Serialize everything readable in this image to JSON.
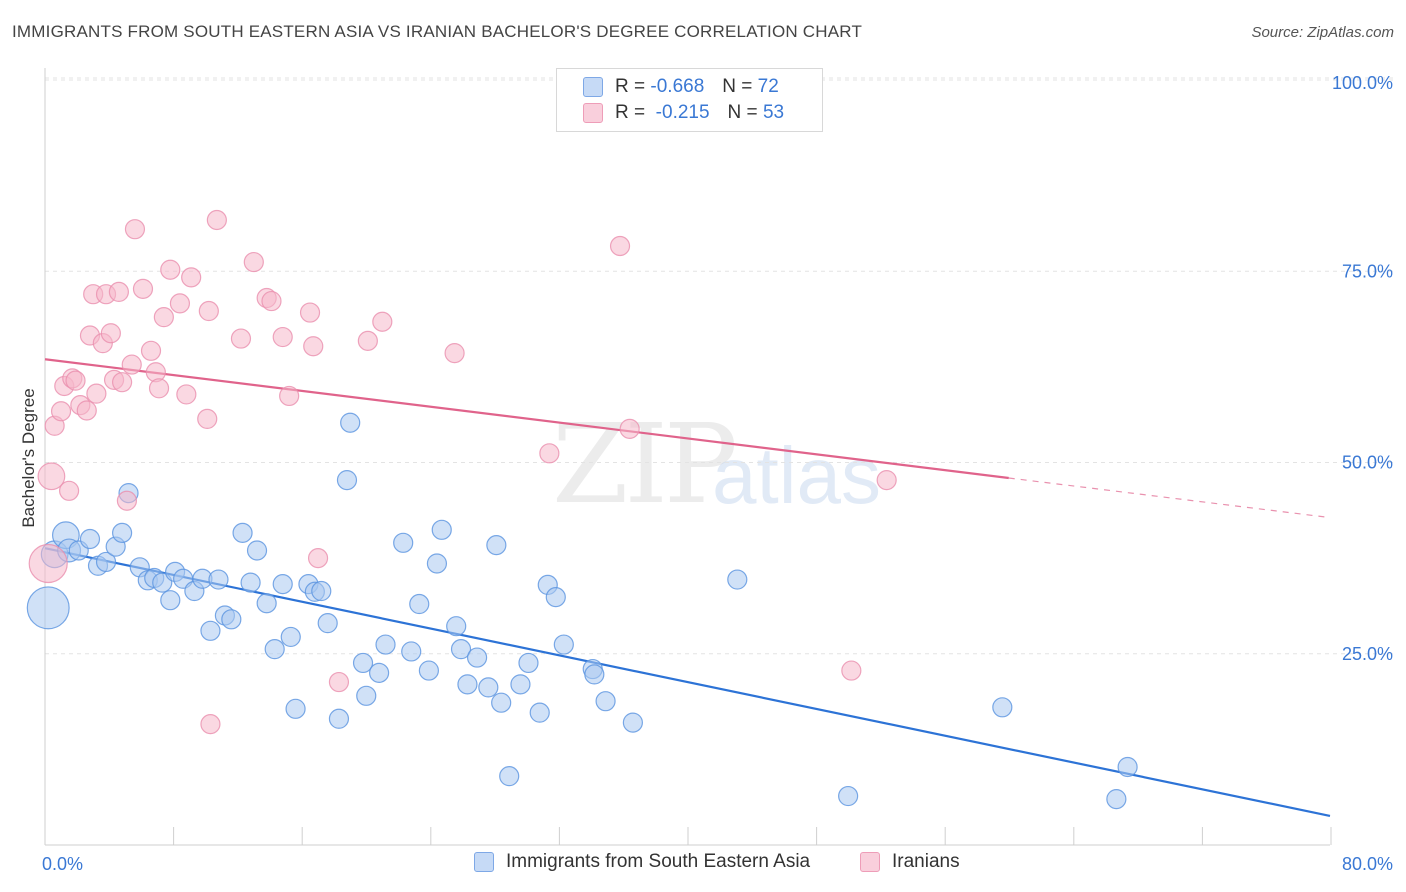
{
  "title": "IMMIGRANTS FROM SOUTH EASTERN ASIA VS IRANIAN BACHELOR'S DEGREE CORRELATION CHART",
  "source": "Source: ZipAtlas.com",
  "watermark": {
    "zip": "ZIP",
    "atlas": "atlas"
  },
  "legend": {
    "rows": [
      {
        "r_label": "R =",
        "r_value": "-0.668",
        "n_label": "N =",
        "n_value": "72",
        "color": "#aac8f0"
      },
      {
        "r_label": "R =",
        "r_value": "-0.215",
        "n_label": "N =",
        "n_value": "53",
        "color": "#f5b8cb"
      }
    ]
  },
  "bottom_legend": [
    {
      "label": "Immigrants from South Eastern Asia",
      "color": "#aac8f0"
    },
    {
      "label": "Iranians",
      "color": "#f5b8cb"
    }
  ],
  "chart_data": {
    "type": "scatter",
    "title": "IMMIGRANTS FROM SOUTH EASTERN ASIA VS IRANIAN BACHELOR'S DEGREE CORRELATION CHART",
    "xlabel": "",
    "ylabel": "Bachelor's Degree",
    "xlim": [
      0,
      80
    ],
    "ylim": [
      0,
      100
    ],
    "x_tick_labels": [
      "0.0%",
      "80.0%"
    ],
    "y_tick_labels": [
      {
        "value": 100,
        "label": "100.0%"
      },
      {
        "value": 75,
        "label": "75.0%"
      },
      {
        "value": 50,
        "label": "50.0%"
      },
      {
        "value": 25,
        "label": "25.0%"
      }
    ],
    "series": [
      {
        "name": "Immigrants from South Eastern Asia",
        "color": "#5a93e0",
        "fill": "#aac8f0",
        "trend": {
          "x": [
            0,
            80
          ],
          "y": [
            38.8,
            3.8
          ],
          "solid_until": 80,
          "color": "#2d73d6"
        },
        "points": [
          [
            0.2,
            31,
            2.2
          ],
          [
            0.6,
            38,
            1.4
          ],
          [
            1.3,
            40.5,
            1.4
          ],
          [
            1.5,
            38.5,
            1.2
          ],
          [
            2.1,
            38.5,
            1.0
          ],
          [
            2.8,
            40,
            1.0
          ],
          [
            3.3,
            36.5,
            1.0
          ],
          [
            3.8,
            37,
            1.0
          ],
          [
            4.4,
            39,
            1.0
          ],
          [
            4.8,
            40.8,
            1.0
          ],
          [
            5.2,
            46,
            1.0
          ],
          [
            5.9,
            36.3,
            1.0
          ],
          [
            6.4,
            34.6,
            1.0
          ],
          [
            6.8,
            34.9,
            1.0
          ],
          [
            7.3,
            34.3,
            1.0
          ],
          [
            7.8,
            32,
            1.0
          ],
          [
            8.1,
            35.7,
            1.0
          ],
          [
            8.6,
            34.8,
            1.0
          ],
          [
            9.3,
            33.2,
            1.0
          ],
          [
            9.8,
            34.8,
            1.0
          ],
          [
            10.3,
            28,
            1.0
          ],
          [
            10.8,
            34.7,
            1.0
          ],
          [
            11.2,
            30,
            1.0
          ],
          [
            11.6,
            29.5,
            1.0
          ],
          [
            12.3,
            40.8,
            1.0
          ],
          [
            12.8,
            34.3,
            1.0
          ],
          [
            13.2,
            38.5,
            1.0
          ],
          [
            13.8,
            31.6,
            1.0
          ],
          [
            14.3,
            25.6,
            1.0
          ],
          [
            14.8,
            34.1,
            1.0
          ],
          [
            15.3,
            27.2,
            1.0
          ],
          [
            15.6,
            17.8,
            1.0
          ],
          [
            16.4,
            34.1,
            1.0
          ],
          [
            16.8,
            33.1,
            1.0
          ],
          [
            17.2,
            33.2,
            1.0
          ],
          [
            17.6,
            29,
            1.0
          ],
          [
            18.3,
            16.5,
            1.0
          ],
          [
            18.8,
            47.7,
            1.0
          ],
          [
            19.0,
            55.2,
            1.0
          ],
          [
            19.8,
            23.8,
            1.0
          ],
          [
            20.0,
            19.5,
            1.0
          ],
          [
            20.8,
            22.5,
            1.0
          ],
          [
            21.2,
            26.2,
            1.0
          ],
          [
            22.3,
            39.5,
            1.0
          ],
          [
            22.8,
            25.3,
            1.0
          ],
          [
            23.3,
            31.5,
            1.0
          ],
          [
            23.9,
            22.8,
            1.0
          ],
          [
            24.4,
            36.8,
            1.0
          ],
          [
            24.7,
            41.2,
            1.0
          ],
          [
            25.6,
            28.6,
            1.0
          ],
          [
            25.9,
            25.6,
            1.0
          ],
          [
            26.3,
            21,
            1.0
          ],
          [
            26.9,
            24.5,
            1.0
          ],
          [
            27.6,
            20.6,
            1.0
          ],
          [
            28.1,
            39.2,
            1.0
          ],
          [
            28.4,
            18.6,
            1.0
          ],
          [
            28.9,
            9,
            1.0
          ],
          [
            29.6,
            21,
            1.0
          ],
          [
            30.1,
            23.8,
            1.0
          ],
          [
            30.8,
            17.3,
            1.0
          ],
          [
            31.3,
            34,
            1.0
          ],
          [
            31.8,
            32.4,
            1.0
          ],
          [
            32.3,
            26.2,
            1.0
          ],
          [
            34.1,
            23,
            1.0
          ],
          [
            34.2,
            22.3,
            1.0
          ],
          [
            34.9,
            18.8,
            1.0
          ],
          [
            36.6,
            16,
            1.0
          ],
          [
            43.1,
            34.7,
            1.0
          ],
          [
            50.0,
            6.4,
            1.0
          ],
          [
            59.6,
            18,
            1.0
          ],
          [
            66.7,
            6,
            1.0
          ],
          [
            67.4,
            10.2,
            1.0
          ]
        ]
      },
      {
        "name": "Iranians",
        "color": "#ea8fae",
        "fill": "#f5b8cb",
        "trend": {
          "x": [
            0,
            80
          ],
          "y": [
            63.5,
            42.8
          ],
          "solid_until": 60,
          "color": "#e0638b"
        },
        "points": [
          [
            0.2,
            36.8,
            2.0
          ],
          [
            0.4,
            48.2,
            1.4
          ],
          [
            0.6,
            54.8,
            1.0
          ],
          [
            1.0,
            56.7,
            1.0
          ],
          [
            1.2,
            60,
            1.0
          ],
          [
            1.5,
            46.3,
            1.0
          ],
          [
            1.7,
            61,
            1.0
          ],
          [
            1.9,
            60.7,
            1.0
          ],
          [
            2.2,
            57.5,
            1.0
          ],
          [
            2.6,
            56.8,
            1.0
          ],
          [
            2.8,
            66.6,
            1.0
          ],
          [
            3.0,
            72,
            1.0
          ],
          [
            3.2,
            59,
            1.0
          ],
          [
            3.6,
            65.6,
            1.0
          ],
          [
            3.8,
            72,
            1.0
          ],
          [
            4.1,
            66.9,
            1.0
          ],
          [
            4.3,
            60.8,
            1.0
          ],
          [
            4.6,
            72.3,
            1.0
          ],
          [
            4.8,
            60.5,
            1.0
          ],
          [
            5.1,
            45,
            1.0
          ],
          [
            5.4,
            62.8,
            1.0
          ],
          [
            5.6,
            80.5,
            1.0
          ],
          [
            6.1,
            72.7,
            1.0
          ],
          [
            6.6,
            64.6,
            1.0
          ],
          [
            6.9,
            61.8,
            1.0
          ],
          [
            7.1,
            59.7,
            1.0
          ],
          [
            7.4,
            69,
            1.0
          ],
          [
            7.8,
            75.2,
            1.0
          ],
          [
            8.4,
            70.8,
            1.0
          ],
          [
            8.8,
            58.9,
            1.0
          ],
          [
            9.1,
            74.2,
            1.0
          ],
          [
            10.1,
            55.7,
            1.0
          ],
          [
            10.2,
            69.8,
            1.0
          ],
          [
            10.3,
            15.8,
            1.0
          ],
          [
            10.7,
            81.7,
            1.0
          ],
          [
            12.2,
            66.2,
            1.0
          ],
          [
            13.0,
            76.2,
            1.0
          ],
          [
            13.8,
            71.5,
            1.0
          ],
          [
            14.1,
            71.1,
            1.0
          ],
          [
            14.8,
            66.4,
            1.0
          ],
          [
            15.2,
            58.7,
            1.0
          ],
          [
            16.5,
            69.6,
            1.0
          ],
          [
            16.7,
            65.2,
            1.0
          ],
          [
            17.0,
            37.5,
            1.0
          ],
          [
            18.3,
            21.3,
            1.0
          ],
          [
            20.1,
            65.9,
            1.0
          ],
          [
            21.0,
            68.4,
            1.0
          ],
          [
            25.5,
            64.3,
            1.0
          ],
          [
            31.4,
            51.2,
            1.0
          ],
          [
            35.8,
            78.3,
            1.0
          ],
          [
            36.4,
            54.4,
            1.0
          ],
          [
            50.2,
            22.8,
            1.0
          ],
          [
            52.4,
            47.7,
            1.0
          ]
        ]
      }
    ]
  }
}
